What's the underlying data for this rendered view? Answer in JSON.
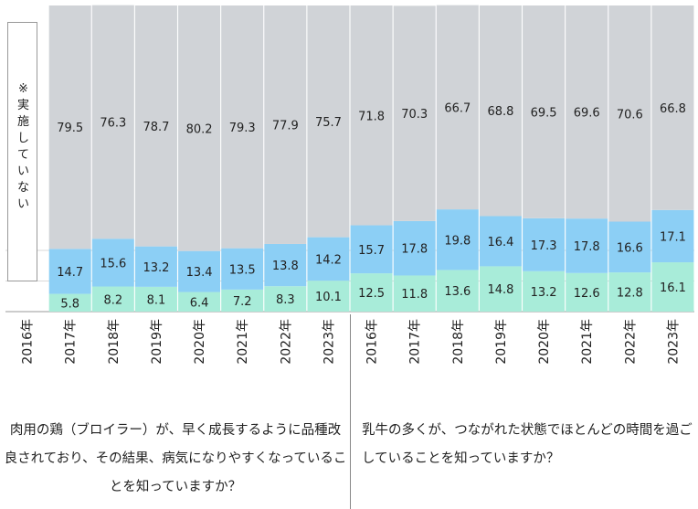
{
  "chart_data": {
    "type": "bar",
    "stacked": true,
    "categories": [
      "2016年",
      "2017年",
      "2018年",
      "2019年",
      "2020年",
      "2021年",
      "2022年",
      "2023年",
      "2016年",
      "2017年",
      "2018年",
      "2019年",
      "2020年",
      "2021年",
      "2022年",
      "2023年"
    ],
    "groups": [
      {
        "caption": "肉用の鶏（ブロイラー）が、早く成長するように品種改良されており、その結果、病気になりやすくなっていることを知っていますか？",
        "category_index": [
          0,
          1,
          2,
          3,
          4,
          5,
          6,
          7
        ]
      },
      {
        "caption": "乳牛の多くが、つながれた状態でほとんどの時間を過ごしていることを知っていますか？",
        "category_index": [
          8,
          9,
          10,
          11,
          12,
          13,
          14,
          15
        ]
      }
    ],
    "series": [
      {
        "color": "#a8ecd9",
        "values": [
          null,
          5.8,
          8.2,
          8.1,
          6.4,
          7.2,
          8.3,
          10.1,
          12.5,
          11.8,
          13.6,
          14.8,
          13.2,
          12.6,
          12.8,
          16.1
        ]
      },
      {
        "color": "#8ccff5",
        "values": [
          null,
          14.7,
          15.6,
          13.2,
          13.4,
          13.5,
          13.8,
          14.2,
          15.7,
          17.8,
          19.8,
          16.4,
          17.3,
          17.8,
          16.6,
          17.1
        ]
      },
      {
        "color": "#d0d3d7",
        "values": [
          null,
          79.5,
          76.3,
          78.7,
          80.2,
          79.3,
          77.9,
          75.7,
          71.8,
          70.3,
          66.7,
          68.8,
          69.5,
          69.6,
          70.6,
          66.8
        ]
      }
    ],
    "ylim": [
      0,
      100
    ],
    "legend_note": "※実施していない"
  }
}
